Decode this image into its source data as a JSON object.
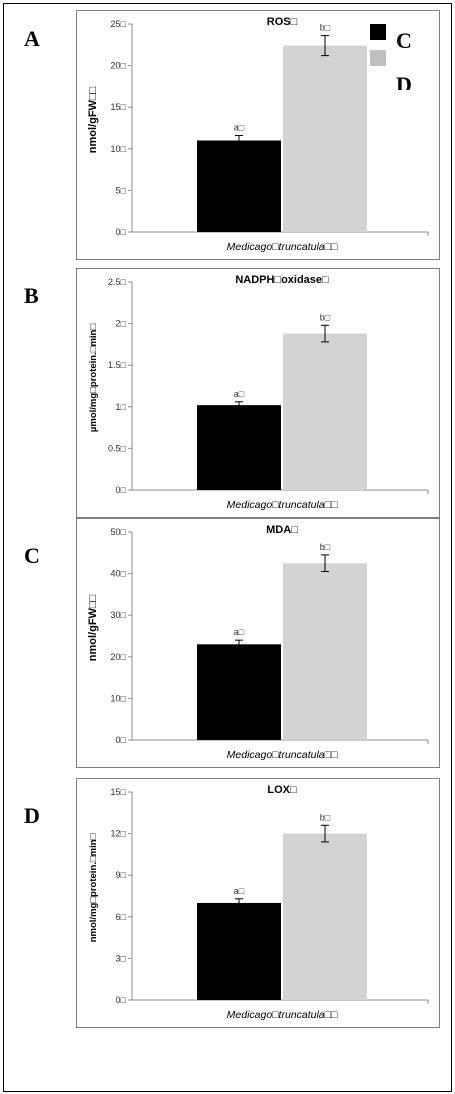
{
  "legend": {
    "items": [
      {
        "label": "C",
        "color": "#000000"
      },
      {
        "label": "D",
        "color": "#bfbfbf"
      }
    ]
  },
  "panels": [
    {
      "letter": "A"
    },
    {
      "letter": "B"
    },
    {
      "letter": "C"
    },
    {
      "letter": "D"
    }
  ],
  "colors": {
    "control": "#000000",
    "treated": "#d3d3d3"
  },
  "chart_data": [
    {
      "type": "bar",
      "title": "ROS□",
      "xlabel": "Medicago□truncatula□□",
      "ylabel": "nmol/gFW□□",
      "ylim": [
        0,
        25
      ],
      "yticks": [
        0,
        5,
        10,
        15,
        20,
        25
      ],
      "tick_labels": [
        "0□",
        "5□",
        "10□",
        "15□",
        "20□",
        "25□"
      ],
      "values": [
        11.0,
        22.4
      ],
      "errors": [
        0.6,
        1.2
      ],
      "bar_labels": [
        "a□",
        "b□"
      ]
    },
    {
      "type": "bar",
      "title": "NADPH□oxidase□",
      "xlabel": "Medicago□truncatula□□",
      "ylabel": "µmol/mg□protein.□min□",
      "ylim": [
        0,
        2.5
      ],
      "yticks": [
        0,
        0.5,
        1,
        1.5,
        2,
        2.5
      ],
      "tick_labels": [
        "0□",
        "0.5□",
        "1□",
        "1.5□",
        "2□",
        "2.5□"
      ],
      "values": [
        1.02,
        1.88
      ],
      "errors": [
        0.04,
        0.1
      ],
      "bar_labels": [
        "a□",
        "b□"
      ]
    },
    {
      "type": "bar",
      "title": "MDA□",
      "xlabel": "Medicago□truncatula□□",
      "ylabel": "nmol/gFW□□",
      "ylim": [
        0,
        50
      ],
      "yticks": [
        0,
        10,
        20,
        30,
        40,
        50
      ],
      "tick_labels": [
        "0□",
        "10□",
        "20□",
        "30□",
        "40□",
        "50□"
      ],
      "values": [
        23.0,
        42.5
      ],
      "errors": [
        1.0,
        2.0
      ],
      "bar_labels": [
        "a□",
        "b□"
      ]
    },
    {
      "type": "bar",
      "title": "LOX□",
      "xlabel": "Medicago□truncatula□□",
      "ylabel": "nmol/mg□protein.□min□",
      "ylim": [
        0,
        15
      ],
      "yticks": [
        0,
        3,
        6,
        9,
        12,
        15
      ],
      "tick_labels": [
        "0□",
        "3□",
        "6□",
        "9□",
        "12□",
        "15□"
      ],
      "values": [
        7.0,
        12.0
      ],
      "errors": [
        0.3,
        0.6
      ],
      "bar_labels": [
        "a□",
        "b□"
      ]
    }
  ]
}
